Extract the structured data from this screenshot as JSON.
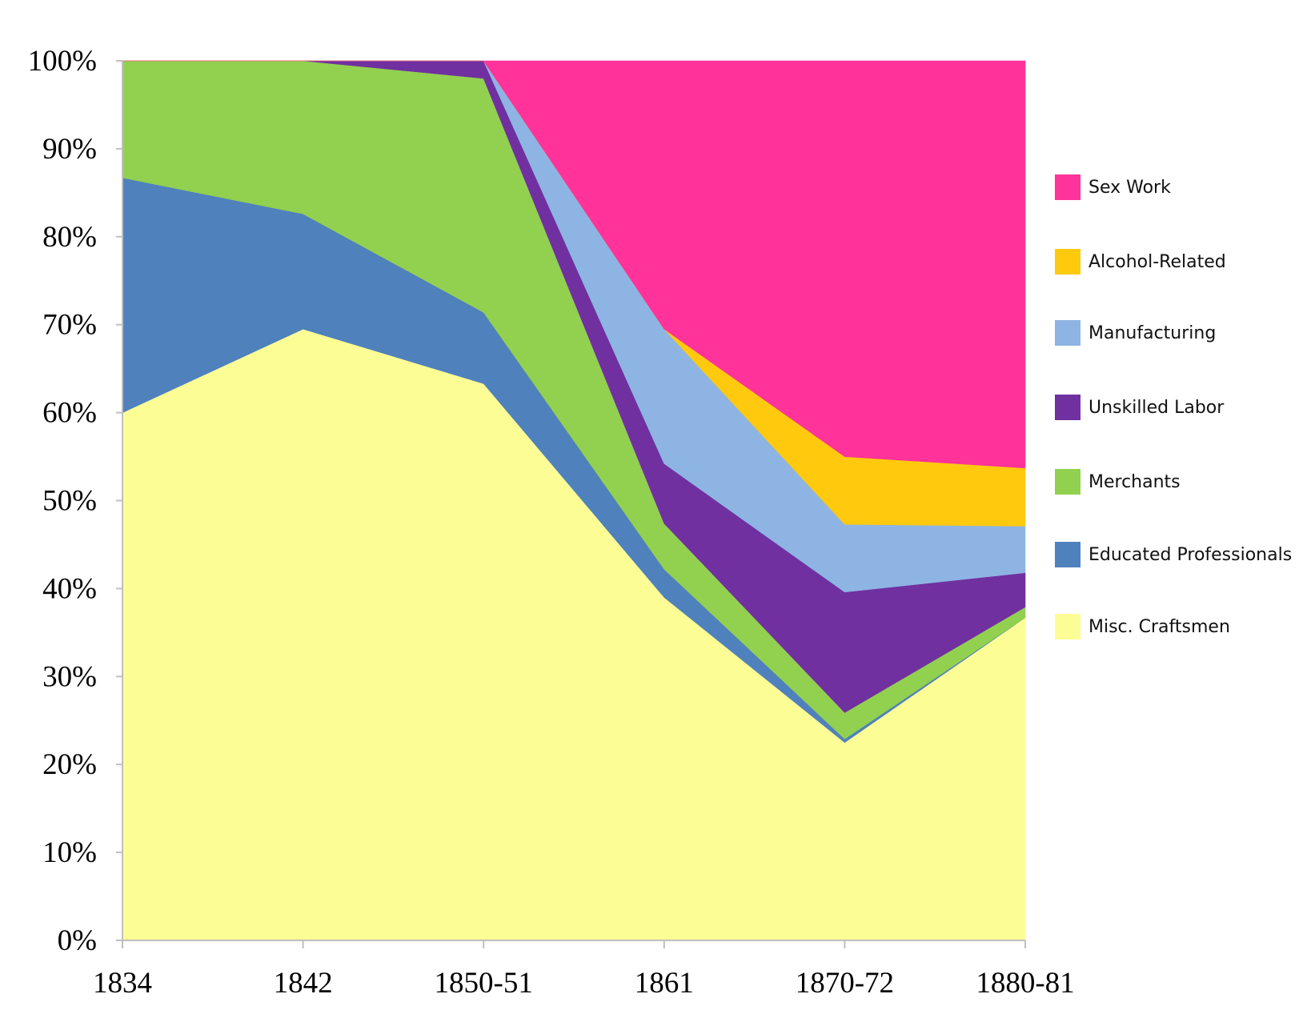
{
  "chart_data": {
    "type": "area",
    "stacked": true,
    "categories": [
      "1834",
      "1842",
      "1850-51",
      "1861",
      "1870-72",
      "1880-81"
    ],
    "ylim": [
      0,
      100
    ],
    "y_ticks": [
      "0%",
      "10%",
      "20%",
      "30%",
      "40%",
      "50%",
      "60%",
      "70%",
      "80%",
      "90%",
      "100%"
    ],
    "grid": false,
    "legend_position": "right",
    "series": [
      {
        "name": "Misc. Craftsmen",
        "color": "#FDFD96",
        "values": [
          60,
          69.5,
          63.3,
          39,
          22.5,
          36.7
        ]
      },
      {
        "name": "Educated Professionals",
        "color": "#4F81BD",
        "values": [
          26.7,
          13.1,
          8.1,
          3.2,
          0.4,
          0
        ]
      },
      {
        "name": "Merchants",
        "color": "#92D050",
        "values": [
          13.3,
          17.4,
          26.6,
          5.2,
          3.0,
          1.2
        ]
      },
      {
        "name": "Unskilled Labor",
        "color": "#7030A0",
        "values": [
          0,
          0,
          2.0,
          6.8,
          13.7,
          3.9
        ]
      },
      {
        "name": "Manufacturing",
        "color": "#8EB4E3",
        "values": [
          0,
          0,
          0,
          15.3,
          7.7,
          5.3
        ]
      },
      {
        "name": "Alcohol-Related",
        "color": "#FFC90E",
        "values": [
          0,
          0,
          0,
          0,
          7.7,
          6.6
        ]
      },
      {
        "name": "Sex Work",
        "color": "#FF3399",
        "values": [
          0,
          0,
          0,
          30.5,
          45.0,
          46.3
        ]
      }
    ],
    "legend_order": [
      "Sex Work",
      "Alcohol-Related",
      "Manufacturing",
      "Unskilled Labor",
      "Merchants",
      "Educated Professionals",
      "Misc. Craftsmen"
    ]
  }
}
